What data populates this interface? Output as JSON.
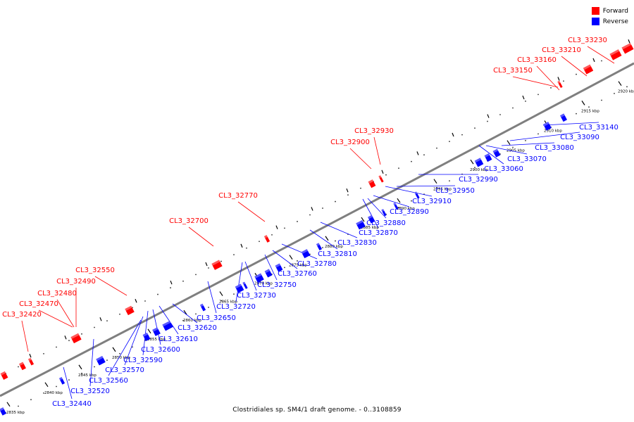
{
  "legend": [
    {
      "label": "Forward",
      "color": "#ff0000"
    },
    {
      "label": "Reverse",
      "color": "#0000ff"
    }
  ],
  "colors": {
    "forward": "#ff0000",
    "reverse": "#0000ff",
    "axis": "#7f7f7f"
  },
  "caption": "Clostridiales sp. SM4/1 draft genome. - 0..3108859",
  "axis": {
    "unit": "kbp",
    "tick_labels": [
      "2835 kbp",
      "2840 kbp",
      "2845 kbp",
      "2850 kbp",
      "2855 kbp",
      "2860 kbp",
      "2865 kbp",
      "2870 kbp",
      "2875 kbp",
      "2880 kbp",
      "2885 kbp",
      "2890 kbp",
      "2895 kbp",
      "2900 kbp",
      "2905 kbp",
      "2910 kbp",
      "2915 kbp",
      "2920 kbp"
    ]
  },
  "forward_labels": [
    "CL3_32420",
    "CL3_32470",
    "CL3_32480",
    "CL3_32490",
    "CL3_32550",
    "CL3_32700",
    "CL3_32770",
    "CL3_32900",
    "CL3_32930",
    "CL3_33150",
    "CL3_33160",
    "CL3_33210",
    "CL3_33230"
  ],
  "reverse_labels": [
    "CL3_32440",
    "CL3_32520",
    "CL3_32560",
    "CL3_32570",
    "CL3_32590",
    "CL3_32600",
    "CL3_32610",
    "CL3_32620",
    "CL3_32650",
    "CL3_32720",
    "CL3_32730",
    "CL3_32750",
    "CL3_32760",
    "CL3_32780",
    "CL3_32810",
    "CL3_32830",
    "CL3_32870",
    "CL3_32880",
    "CL3_32890",
    "CL3_32910",
    "CL3_32950",
    "CL3_32990",
    "CL3_33060",
    "CL3_33070",
    "CL3_33080",
    "CL3_33090",
    "CL3_33140"
  ]
}
